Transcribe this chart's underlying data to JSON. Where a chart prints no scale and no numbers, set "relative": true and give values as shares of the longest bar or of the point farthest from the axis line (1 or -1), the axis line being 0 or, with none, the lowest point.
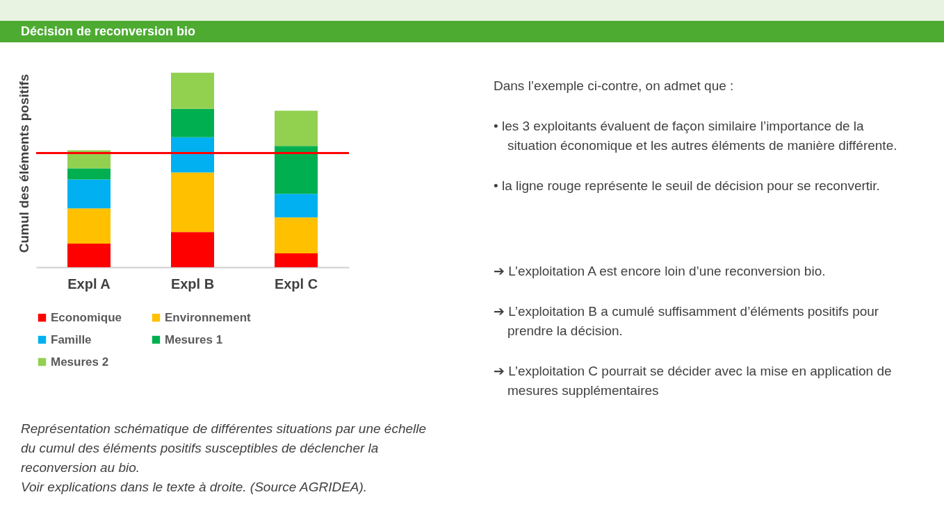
{
  "chart_data": {
    "type": "bar",
    "title": "Décision de reconversion bio",
    "ylabel": "Cumul des éléments positifs",
    "categories": [
      "Expl A",
      "Expl B",
      "Expl C"
    ],
    "stacked": true,
    "relative": true,
    "legend": "bottom",
    "series": [
      {
        "name": "Economique",
        "color": "#ff0000",
        "values": [
          0.121,
          0.181,
          0.071
        ]
      },
      {
        "name": "Environnement",
        "color": "#ffc000",
        "values": [
          0.181,
          0.306,
          0.185
        ]
      },
      {
        "name": "Famille",
        "color": "#00b0f0",
        "values": [
          0.149,
          0.181,
          0.121
        ]
      },
      {
        "name": "Mesures 1",
        "color": "#00b050",
        "values": [
          0.057,
          0.146,
          0.246
        ]
      },
      {
        "name": "Mesures 2",
        "color": "#92d050",
        "values": [
          0.093,
          0.186,
          0.181
        ]
      }
    ],
    "ref_lines": [
      {
        "axis": "y",
        "value": 0.587,
        "color": "#ff0000"
      }
    ],
    "annotations": [
      "Représentation schématique de différentes situations par une échelle du cumul des éléments positifs susceptibles de déclencher la reconversion au bio.",
      "Voir explications dans le texte à droite. (Source AGRIDEA).",
      "Dans l’exemple ci-contre, on admet que :",
      "• les 3 exploitants évaluent de façon similaire l’importance de la situation économique et les autres éléments de manière différente.",
      "• la ligne rouge représente le seuil de décision pour se reconvertir.",
      "➔ L’exploitation A est encore loin d’une reconversion bio.",
      "➔ L’exploitation B a cumulé suffisamment d’éléments positifs pour prendre la décision.",
      "➔ L’exploitation C pourrait se décider avec la mise en application de mesures supplémentaires"
    ]
  }
}
